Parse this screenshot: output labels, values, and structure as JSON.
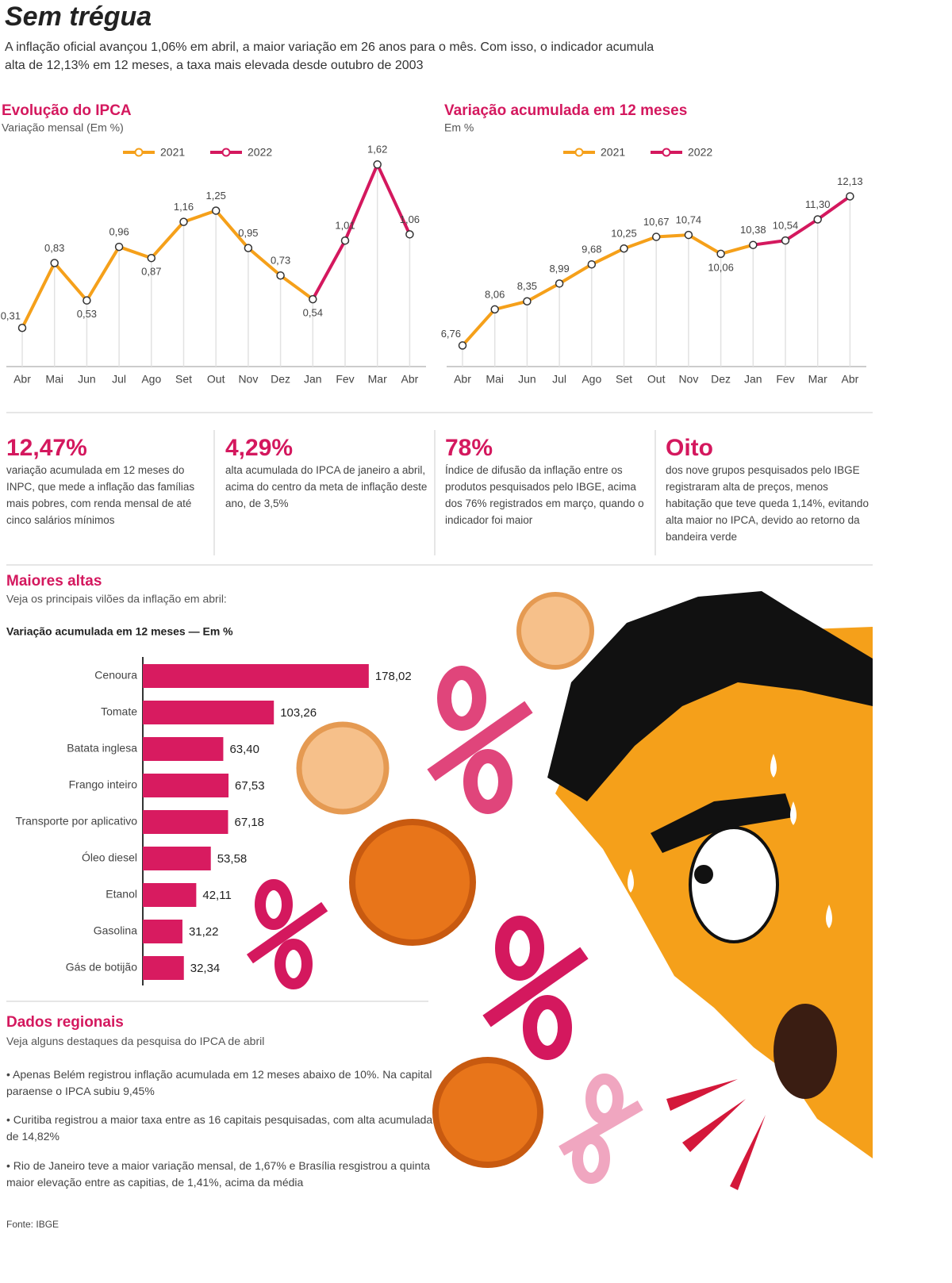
{
  "header": {
    "title": "Sem trégua",
    "subtitle": "A inflação oficial avançou 1,06% em abril, a maior variação em 26 anos para o mês. Com isso, o indicador acumula alta de 12,13% em 12 meses, a taxa mais elevada desde outubro de 2003"
  },
  "chart_data": [
    {
      "type": "line",
      "title": "Evolução do IPCA",
      "subtitle": "Variação mensal (Em %)",
      "categories": [
        "Abr",
        "Mai",
        "Jun",
        "Jul",
        "Ago",
        "Set",
        "Out",
        "Nov",
        "Dez",
        "Jan",
        "Fev",
        "Mar",
        "Abr"
      ],
      "series": [
        {
          "name": "2021",
          "color": "#f5a01a",
          "values": [
            0.31,
            0.83,
            0.53,
            0.96,
            0.87,
            1.16,
            1.25,
            0.95,
            0.73,
            null,
            null,
            null,
            null
          ],
          "value_labels": [
            "0,31",
            "0,83",
            "0,53",
            "0,96",
            "0,87",
            "1,16",
            "1,25",
            "0,95",
            "0,73",
            null,
            null,
            null,
            null
          ]
        },
        {
          "name": "2022",
          "color": "#d4185e",
          "values": [
            null,
            null,
            null,
            null,
            null,
            null,
            null,
            null,
            null,
            0.54,
            1.01,
            1.62,
            1.06
          ],
          "value_labels": [
            null,
            null,
            null,
            null,
            null,
            null,
            null,
            null,
            null,
            "0,54",
            "1,01",
            "1,62",
            "1,06"
          ]
        }
      ],
      "ylim": [
        0,
        1.8
      ],
      "legend": "top"
    },
    {
      "type": "line",
      "title": "Variação acumulada em 12 meses",
      "subtitle": "Em %",
      "categories": [
        "Abr",
        "Mai",
        "Jun",
        "Jul",
        "Ago",
        "Set",
        "Out",
        "Nov",
        "Dez",
        "Jan",
        "Fev",
        "Mar",
        "Abr"
      ],
      "series": [
        {
          "name": "2021",
          "color": "#f5a01a",
          "values": [
            6.76,
            8.06,
            8.35,
            8.99,
            9.68,
            10.25,
            10.67,
            10.74,
            10.06,
            null,
            null,
            null,
            null
          ],
          "value_labels": [
            "6,76",
            "8,06",
            "8,35",
            "8,99",
            "9,68",
            "10,25",
            "10,67",
            "10,74",
            "10,06",
            null,
            null,
            null,
            null
          ]
        },
        {
          "name": "2022",
          "color": "#d4185e",
          "values": [
            null,
            null,
            null,
            null,
            null,
            null,
            null,
            null,
            null,
            10.38,
            10.54,
            11.3,
            12.13
          ],
          "value_labels": [
            null,
            null,
            null,
            null,
            null,
            null,
            null,
            null,
            null,
            "10,38",
            "10,54",
            "11,30",
            "12,13"
          ]
        }
      ],
      "ylim": [
        6,
        12.8
      ],
      "legend": "top"
    },
    {
      "type": "bar",
      "orientation": "horizontal",
      "title": "Maiores altas",
      "subtitle": "Veja os principais vilões da inflação em abril:",
      "axis_label": "Variação acumulada em 12 meses — Em %",
      "categories": [
        "Cenoura",
        "Tomate",
        "Batata inglesa",
        "Frango inteiro",
        "Transporte por aplicativo",
        "Óleo diesel",
        "Etanol",
        "Gasolina",
        "Gás de botijão"
      ],
      "values": [
        178.02,
        103.26,
        63.4,
        67.53,
        67.18,
        53.58,
        42.11,
        31.22,
        32.34
      ],
      "value_labels": [
        "178,02",
        "103,26",
        "63,40",
        "67,53",
        "67,18",
        "53,58",
        "42,11",
        "31,22",
        "32,34"
      ],
      "color": "#d81b60",
      "xlim": [
        0,
        200
      ]
    }
  ],
  "stats": [
    {
      "value": "12,47%",
      "text": "variação acumulada em 12 meses do INPC, que mede a inflação das famílias mais pobres, com renda mensal de até cinco salários mínimos"
    },
    {
      "value": "4,29%",
      "text": "alta acumulada do IPCA de janeiro a abril, acima do centro da meta de inflação deste ano, de 3,5%"
    },
    {
      "value": "78%",
      "text": "Índice de difusão da inflação entre os produtos pesquisados pelo IBGE, acima dos 76% registrados em março, quando o indicador foi maior"
    },
    {
      "value": "Oito",
      "text": "dos nove grupos pesquisados pelo IBGE registraram alta de preços, menos habitação que teve queda 1,14%, evitando alta maior no IPCA, devido ao retorno da bandeira verde"
    }
  ],
  "regional": {
    "title": "Dados regionais",
    "subtitle": "Veja alguns destaques da pesquisa do IPCA de abril",
    "items": [
      "Apenas Belém registrou inflação acumulada em 12 meses abaixo de 10%. Na capital paraense o IPCA subiu 9,45%",
      "Curitiba registrou a maior taxa entre as 16 capitais pesquisadas, com alta acumulada de 14,82%",
      "Rio de Janeiro teve a maior variação mensal, de 1,67% e Brasília resgistrou a quinta maior elevação entre as capitias, de 1,41%, acima da média"
    ]
  },
  "source": "Fonte: IBGE"
}
